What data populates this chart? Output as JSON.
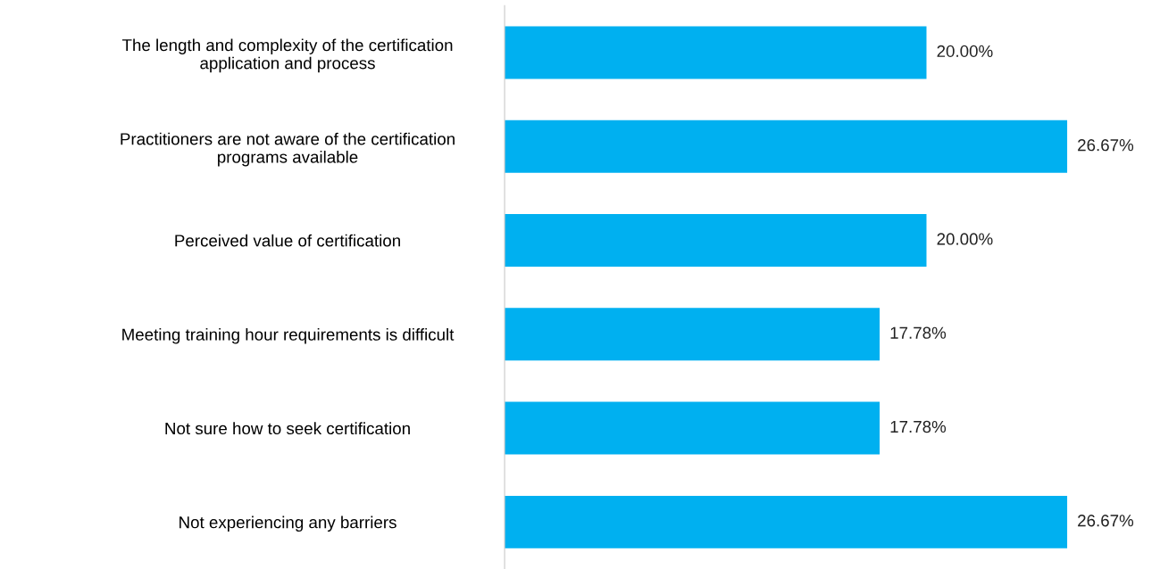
{
  "chart_data": {
    "type": "bar",
    "orientation": "horizontal",
    "categories": [
      "The length and complexity of the certification\napplication and process",
      "Practitioners are not aware of the certification\nprograms available",
      "Perceived value of certification",
      "Meeting training hour requirements is difficult",
      "Not sure how to seek certification",
      "Not experiencing any barriers"
    ],
    "values": [
      20.0,
      26.67,
      20.0,
      17.78,
      17.78,
      26.67
    ],
    "value_labels": [
      "20.00%",
      "26.67%",
      "20.00%",
      "17.78%",
      "17.78%",
      "26.67%"
    ],
    "color": "#00b0f0",
    "grid": false,
    "legend": false,
    "tick_labels": "y"
  }
}
